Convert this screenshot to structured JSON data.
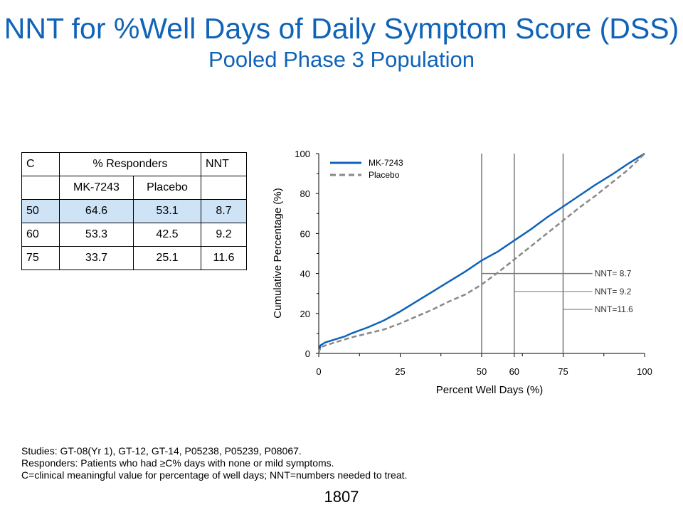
{
  "title": "NNT for %Well Days of Daily Symptom Score (DSS)",
  "subtitle": "Pooled Phase 3 Population",
  "table": {
    "header": [
      "C",
      "% Responders",
      "NNT"
    ],
    "subheader": [
      "",
      "MK-7243",
      "Placebo",
      ""
    ],
    "rows": [
      {
        "c": "50",
        "mk": "64.6",
        "placebo": "53.1",
        "nnt": "8.7",
        "highlight": true
      },
      {
        "c": "60",
        "mk": "53.3",
        "placebo": "42.5",
        "nnt": "9.2",
        "highlight": false
      },
      {
        "c": "75",
        "mk": "33.7",
        "placebo": "25.1",
        "nnt": "11.6",
        "highlight": false
      }
    ]
  },
  "chart_data": {
    "type": "line",
    "xlabel": "Percent Well Days (%)",
    "ylabel": "Cumulative Percentage (%)",
    "xlim": [
      0,
      100
    ],
    "ylim": [
      0,
      100
    ],
    "xticks": [
      0,
      25,
      50,
      60,
      75,
      100
    ],
    "yticks": [
      0,
      20,
      40,
      60,
      80,
      100
    ],
    "legend_position": "top-left",
    "grid": false,
    "series": [
      {
        "name": "MK-7243",
        "color": "#1063b8",
        "style": "solid",
        "x": [
          0,
          0.5,
          2,
          5,
          8,
          10,
          15,
          20,
          25,
          30,
          35,
          40,
          45,
          50,
          55,
          60,
          65,
          70,
          75,
          80,
          85,
          90,
          95,
          100
        ],
        "y": [
          0,
          4,
          5.5,
          7,
          8.5,
          10,
          13,
          16.5,
          21,
          26,
          31,
          36,
          41,
          46.5,
          51,
          56.5,
          62,
          68,
          73.5,
          79,
          84.5,
          89.5,
          95,
          100
        ]
      },
      {
        "name": "Placebo",
        "color": "#888888",
        "style": "dashed",
        "x": [
          0,
          0.5,
          2,
          5,
          8,
          10,
          15,
          20,
          25,
          30,
          35,
          40,
          45,
          50,
          55,
          60,
          65,
          70,
          75,
          80,
          85,
          90,
          95,
          100
        ],
        "y": [
          0,
          3,
          4,
          5.5,
          7,
          8,
          10,
          12,
          15,
          18.5,
          22,
          26,
          29.5,
          34.5,
          40.5,
          47,
          53.5,
          60,
          66.5,
          73,
          79,
          85.5,
          92,
          100
        ]
      }
    ],
    "reference_lines": [
      {
        "x": 50,
        "y": 40,
        "label": "NNT=  8.7"
      },
      {
        "x": 60,
        "y": 31,
        "label": "NNT=  9.2"
      },
      {
        "x": 75,
        "y": 22,
        "label": "NNT=11.6"
      }
    ]
  },
  "footnotes": [
    "Studies: GT-08(Yr 1), GT-12, GT-14, P05238, P05239, P08067.",
    "Responders: Patients who had ≥C% days with none or mild symptoms.",
    "C=clinical meaningful value for percentage of well days; NNT=numbers needed to treat."
  ],
  "slide_number": "1807"
}
